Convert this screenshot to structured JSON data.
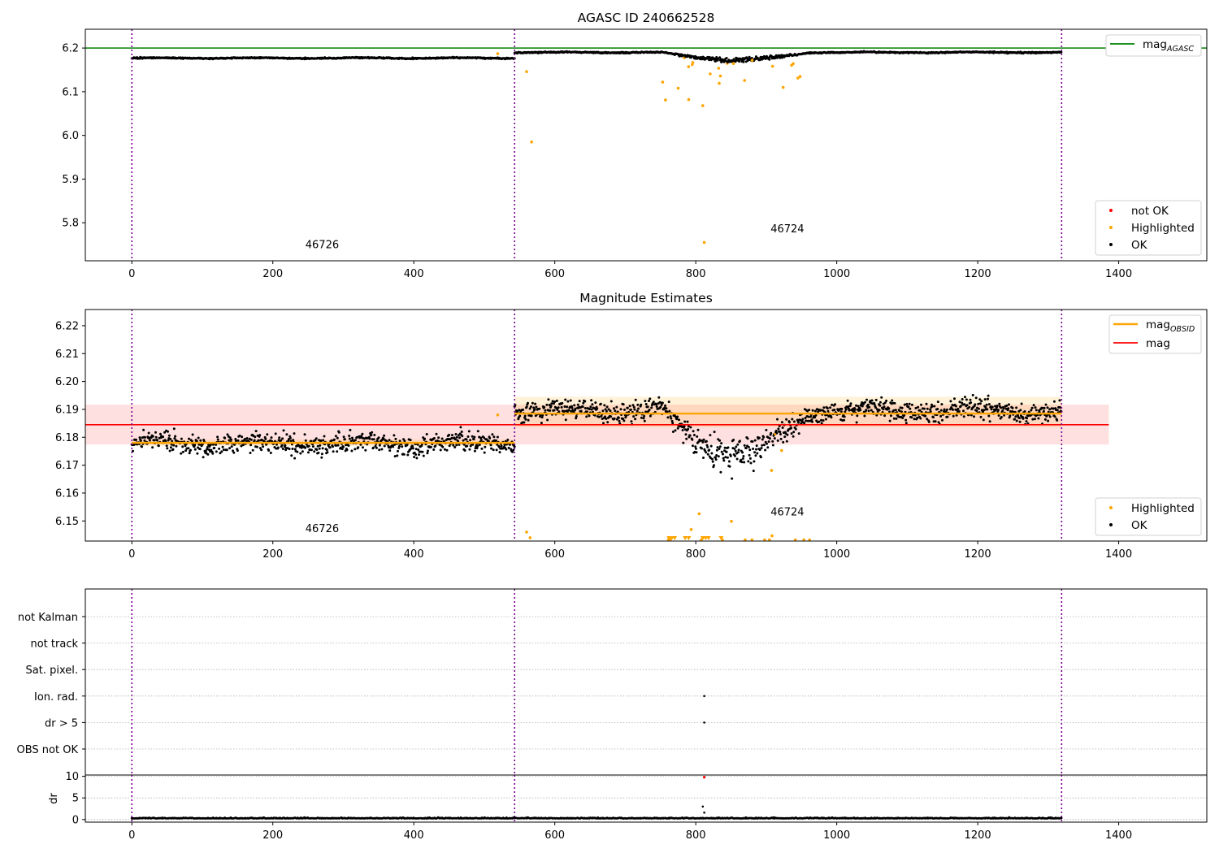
{
  "colors": {
    "ok": "#000000",
    "highlighted": "#ffa500",
    "not_ok": "#ff0000",
    "mag_agasc": "#008000",
    "mag": "#ff0000",
    "mag_obsid": "#ffa500",
    "obsid_boundary": "#7a0090"
  },
  "chart_data": [
    {
      "id": "agasc",
      "type": "scatter",
      "title": "AGASC ID 240662528",
      "xlim": [
        -66,
        1525
      ],
      "ylim": [
        5.713,
        6.243
      ],
      "xticks": [
        0,
        200,
        400,
        600,
        800,
        1000,
        1200,
        1400
      ],
      "xtick_labels": [
        "0",
        "200",
        "400",
        "600",
        "800",
        "1000",
        "1200",
        "1400"
      ],
      "yticks": [
        5.8,
        5.9,
        6.0,
        6.1,
        6.2
      ],
      "ytick_labels": [
        "5.8",
        "5.9",
        "6.0",
        "6.1",
        "6.2"
      ],
      "hline": {
        "y": 6.2,
        "label": "mag",
        "label_sub": "AGASC"
      },
      "obsid_boundaries": [
        0,
        543,
        1319
      ],
      "obsids": [
        {
          "label": "46726",
          "x": 270,
          "y": 5.742
        },
        {
          "label": "46724",
          "x": 930,
          "y": 5.778
        }
      ],
      "segments": [
        {
          "x": [
            0,
            543
          ],
          "mean": 6.177,
          "amp": 0.0022
        },
        {
          "x": [
            543,
            1319
          ],
          "mean": 6.19,
          "amp": 0.0022
        }
      ],
      "dip": {
        "x": [
          752,
          962
        ],
        "min": 6.17
      },
      "highlighted": [
        [
          519,
          6.187
        ],
        [
          560,
          6.146
        ],
        [
          567,
          5.985
        ],
        [
          757,
          6.081
        ],
        [
          812,
          5.755
        ],
        [
          775,
          6.108
        ],
        [
          790,
          6.082
        ],
        [
          810,
          6.068
        ],
        [
          835,
          6.136
        ],
        [
          880,
          6.172
        ]
      ],
      "legend_top": [
        {
          "label": "mag",
          "label_sub": "AGASC",
          "kind": "line",
          "color": "#008000"
        }
      ],
      "legend_bottom": [
        {
          "label": "not OK",
          "kind": "dot",
          "color": "#ff0000"
        },
        {
          "label": "Highlighted",
          "kind": "dot",
          "color": "#ffa500"
        },
        {
          "label": "OK",
          "kind": "dot",
          "color": "#000000"
        }
      ]
    },
    {
      "id": "estimates",
      "type": "scatter",
      "title": "Magnitude Estimates",
      "xlim": [
        -66,
        1525
      ],
      "ylim": [
        6.1428,
        6.2258
      ],
      "xticks": [
        0,
        200,
        400,
        600,
        800,
        1000,
        1200,
        1400
      ],
      "xtick_labels": [
        "0",
        "200",
        "400",
        "600",
        "800",
        "1000",
        "1200",
        "1400"
      ],
      "yticks": [
        6.15,
        6.16,
        6.17,
        6.18,
        6.19,
        6.2,
        6.21,
        6.22
      ],
      "ytick_labels": [
        "6.15",
        "6.16",
        "6.17",
        "6.18",
        "6.19",
        "6.20",
        "6.21",
        "6.22"
      ],
      "mag": {
        "y": 6.1845,
        "band": [
          6.1774,
          6.1917
        ],
        "x": [
          -66,
          1386
        ],
        "label": "mag"
      },
      "mag_obsid": [
        {
          "x": [
            0,
            543
          ],
          "y": 6.178,
          "band": [
            6.1768,
            6.1792
          ]
        },
        {
          "x": [
            543,
            1319
          ],
          "y": 6.1885,
          "band": [
            6.1835,
            6.1945
          ]
        }
      ],
      "obsid_boundaries": [
        0,
        543,
        1319
      ],
      "obsids": [
        {
          "label": "46726",
          "x": 270,
          "y": 6.146
        },
        {
          "label": "46724",
          "x": 930,
          "y": 6.152
        }
      ],
      "segments": [
        {
          "x": [
            0,
            543
          ],
          "mean": 6.1778,
          "amp": 0.0035
        },
        {
          "x": [
            543,
            1319
          ],
          "mean": 6.1895,
          "amp": 0.0035
        }
      ],
      "dip": {
        "x": [
          752,
          962
        ],
        "min": 6.171
      },
      "legend_top": [
        {
          "label": "mag",
          "label_sub": "OBSID",
          "kind": "line",
          "color": "#ffa500"
        },
        {
          "label": "mag",
          "kind": "line",
          "color": "#ff0000"
        }
      ],
      "legend_bottom": [
        {
          "label": "Highlighted",
          "kind": "dot",
          "color": "#ffa500"
        },
        {
          "label": "OK",
          "kind": "dot",
          "color": "#000000"
        }
      ]
    },
    {
      "id": "flags",
      "type": "scatter",
      "xlim": [
        -66,
        1525
      ],
      "categories": [
        "not Kalman",
        "not track",
        "Sat. pixel.",
        "Ion. rad.",
        "dr > 5",
        "OBS not OK"
      ],
      "flag_points": [
        {
          "category": "Ion. rad.",
          "x": 812
        },
        {
          "category": "dr > 5",
          "x": 812
        }
      ],
      "obsid_boundaries": [
        0,
        543,
        1319
      ]
    },
    {
      "id": "dr",
      "type": "scatter",
      "ylabel": "dr",
      "xlim": [
        -66,
        1525
      ],
      "ylim": [
        -0.6,
        10.3
      ],
      "xticks": [
        0,
        200,
        400,
        600,
        800,
        1000,
        1200,
        1400
      ],
      "xtick_labels": [
        "0",
        "200",
        "400",
        "600",
        "800",
        "1000",
        "1200",
        "1400"
      ],
      "yticks": [
        0,
        5,
        10
      ],
      "ytick_labels": [
        "0",
        "5",
        "10"
      ],
      "baseline": 0.25,
      "points": [
        [
          810,
          3.0
        ],
        [
          812,
          1.6
        ]
      ],
      "not_ok_points": [
        [
          812,
          9.8
        ]
      ],
      "obsid_boundaries": [
        0,
        543,
        1319
      ]
    }
  ]
}
